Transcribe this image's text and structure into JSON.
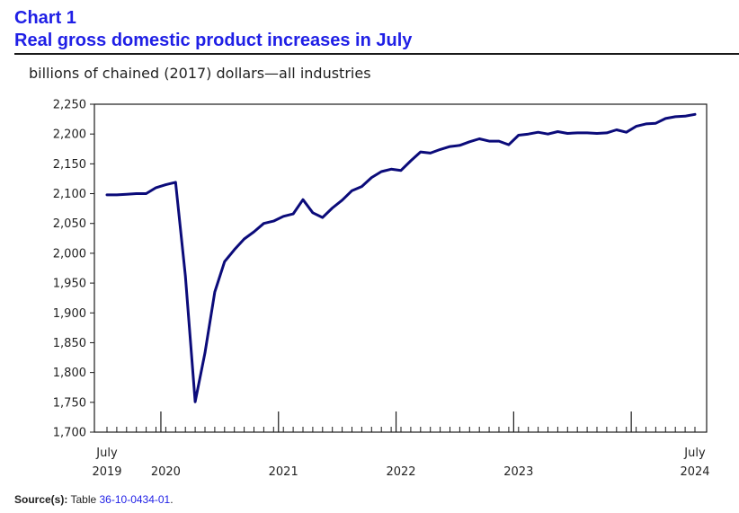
{
  "header": {
    "chart_number": "Chart 1",
    "title": "Real gross domestic product increases in July",
    "unit_label": "billions of chained (2017) dollars—all industries"
  },
  "source": {
    "label": "Source(s):",
    "text": "Table ",
    "link": "36-10-0434-01",
    "suffix": "."
  },
  "colors": {
    "line": "#0b0b7a",
    "title": "#1f1fe6"
  },
  "chart_data": {
    "type": "line",
    "title": "Real gross domestic product increases in July",
    "ylabel": "billions of chained (2017) dollars—all industries",
    "xlabel": "",
    "ylim": [
      1700,
      2250
    ],
    "yticks": [
      1700,
      1750,
      1800,
      1850,
      1900,
      1950,
      2000,
      2050,
      2100,
      2150,
      2200,
      2250
    ],
    "ytick_labels": [
      "1,700",
      "1,750",
      "1,800",
      "1,850",
      "1,900",
      "1,950",
      "2,000",
      "2,050",
      "2,100",
      "2,150",
      "2,200",
      "2,250"
    ],
    "x_labels": [
      {
        "index": 0,
        "top": "July",
        "bottom": "2019"
      },
      {
        "index": 6,
        "top": "",
        "bottom": "2020"
      },
      {
        "index": 18,
        "top": "",
        "bottom": "2021"
      },
      {
        "index": 30,
        "top": "",
        "bottom": "2022"
      },
      {
        "index": 42,
        "top": "",
        "bottom": "2023"
      },
      {
        "index": 60,
        "top": "July",
        "bottom": "2024"
      }
    ],
    "year_boundaries": [
      5.5,
      17.5,
      29.5,
      41.5,
      53.5
    ],
    "series": [
      {
        "name": "Real GDP, all industries",
        "start": "July 2019",
        "values": [
          2098,
          2098,
          2099,
          2100,
          2100,
          2110,
          2115,
          2119,
          1962,
          1751,
          1833,
          1935,
          1986,
          2006,
          2024,
          2036,
          2050,
          2054,
          2062,
          2066,
          2090,
          2068,
          2060,
          2076,
          2089,
          2105,
          2112,
          2127,
          2137,
          2141,
          2139,
          2155,
          2170,
          2168,
          2174,
          2179,
          2181,
          2187,
          2192,
          2188,
          2188,
          2182,
          2198,
          2200,
          2203,
          2200,
          2204,
          2201,
          2202,
          2202,
          2201,
          2202,
          2207,
          2203,
          2213,
          2217,
          2218,
          2226,
          2229,
          2230,
          2233
        ]
      }
    ]
  }
}
